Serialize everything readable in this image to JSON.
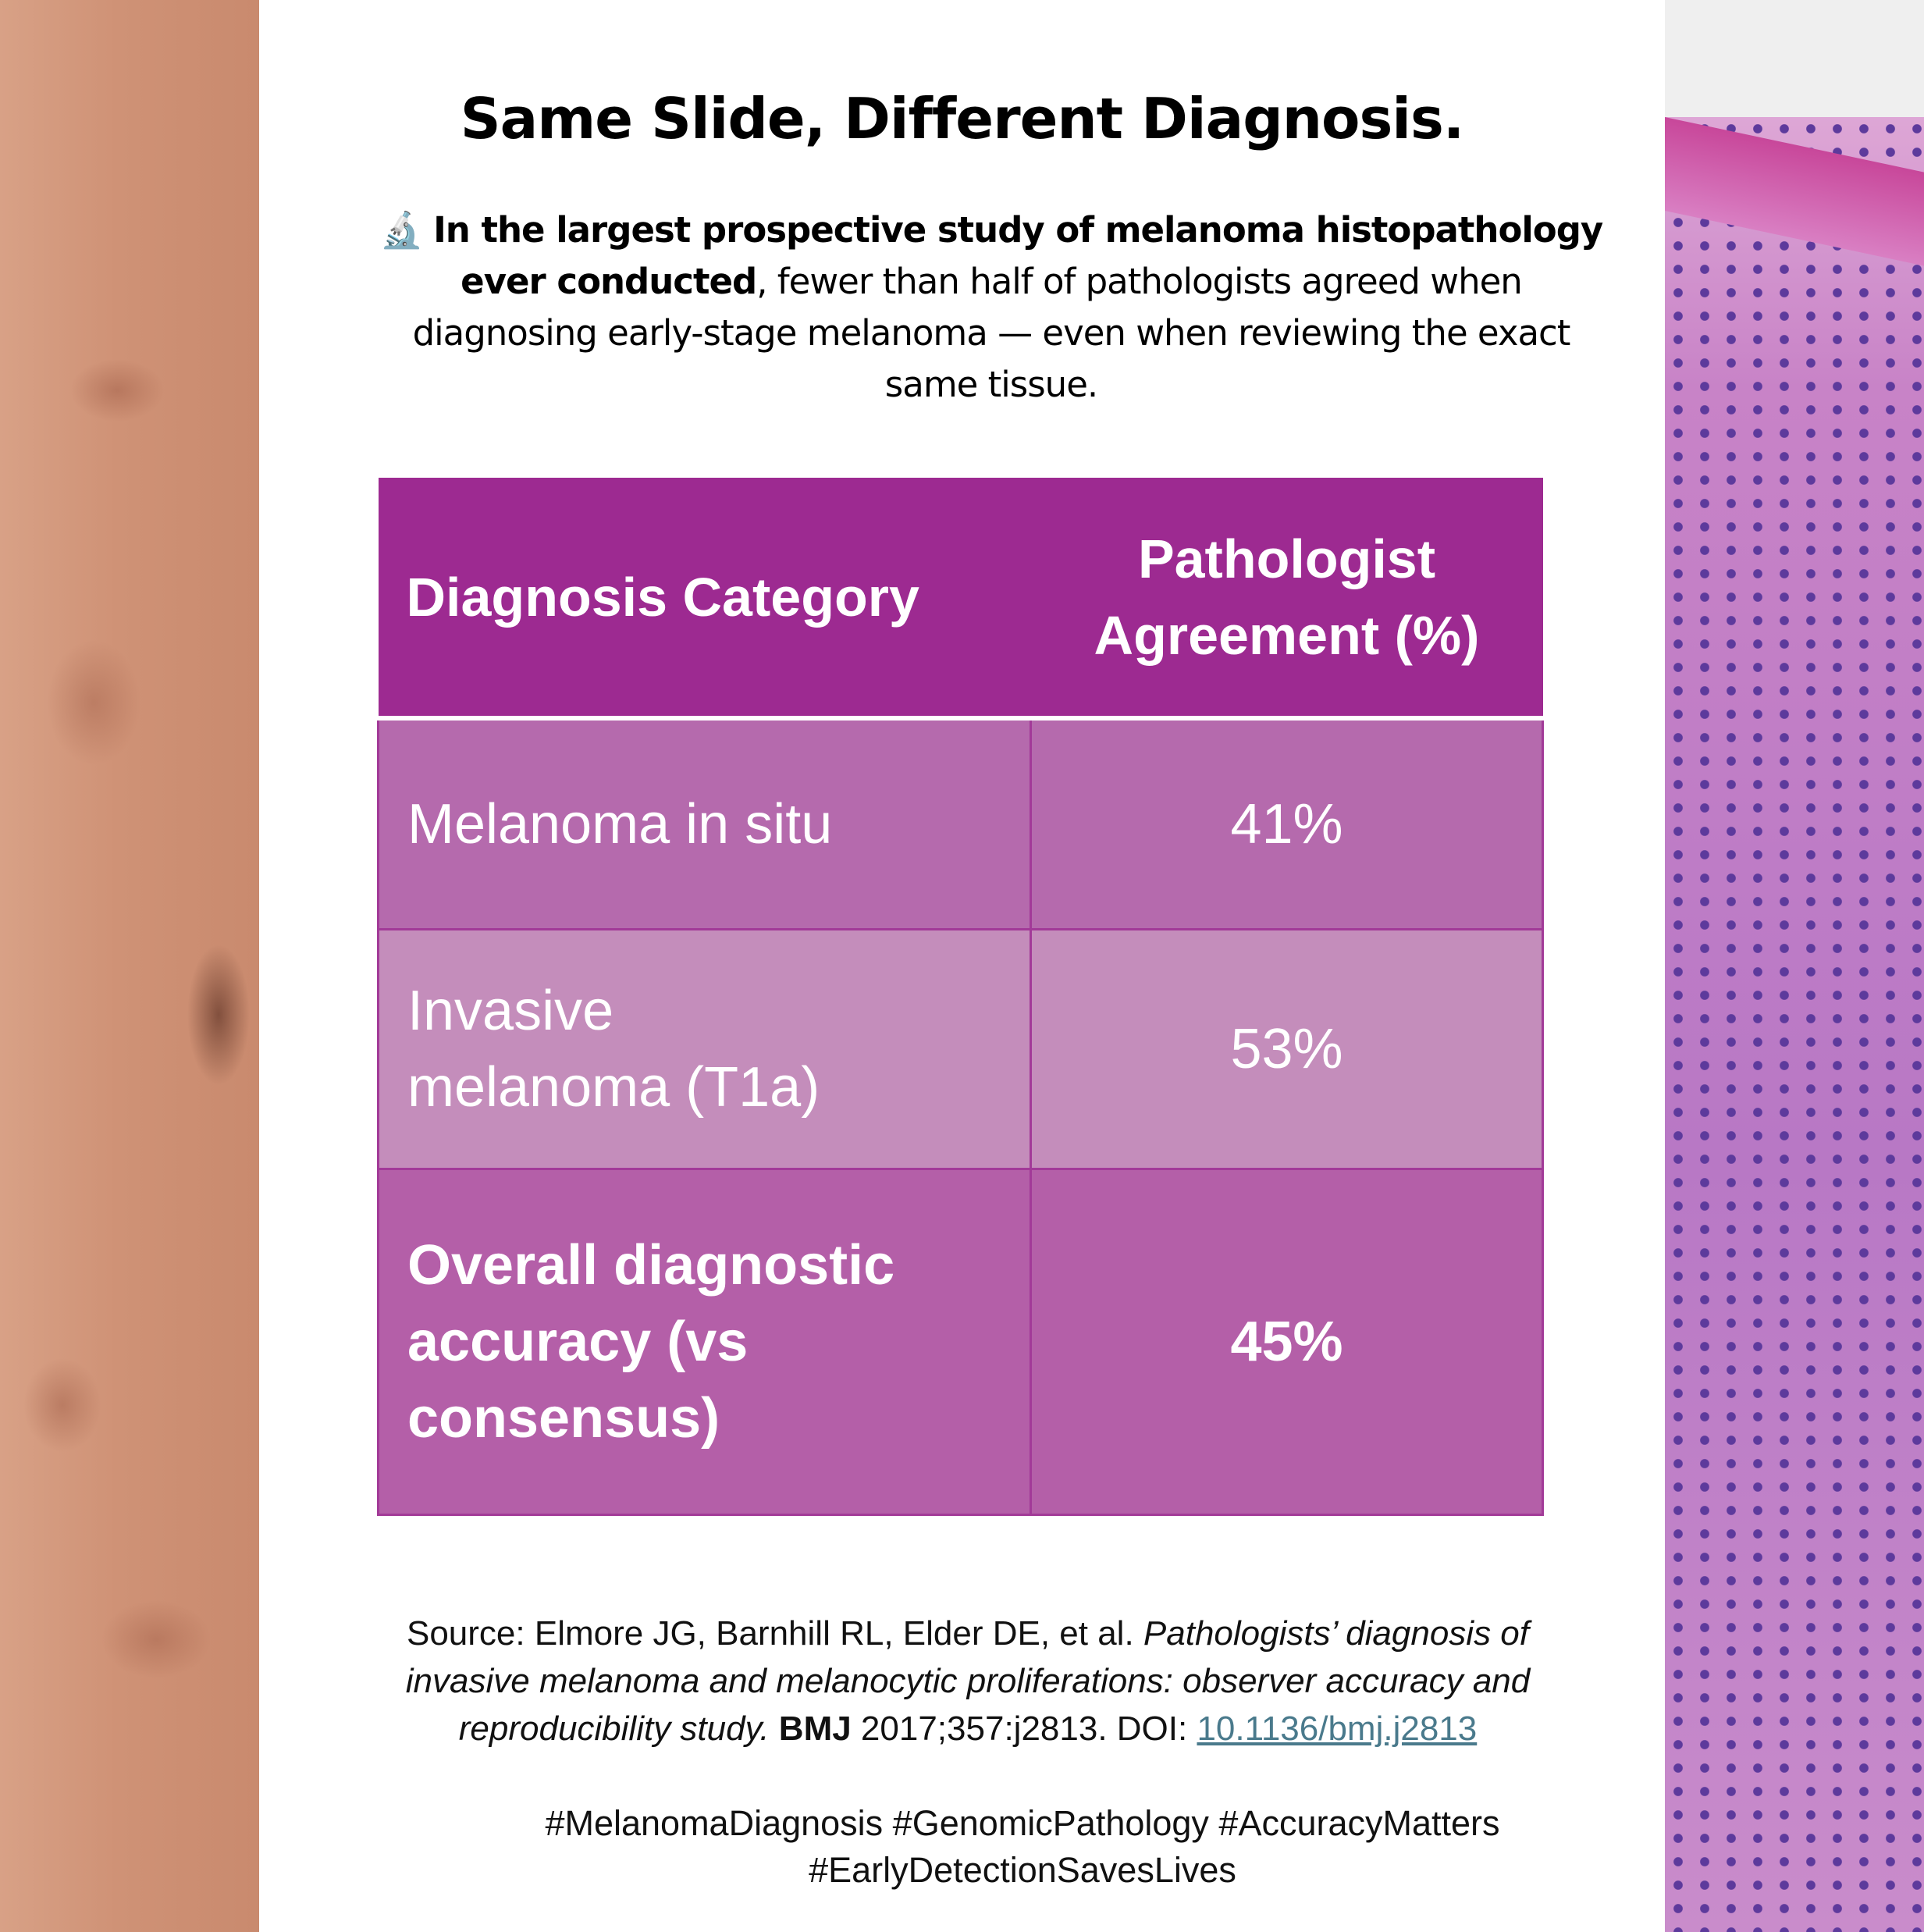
{
  "title": "Same Slide, Different Diagnosis.",
  "intro": {
    "icon": "microscope-icon",
    "bold": "In the largest prospective study of melanoma histopathology ever conducted",
    "rest": ", fewer than half of pathologists agreed when diagnosing early-stage melanoma — even when reviewing the exact same tissue."
  },
  "table": {
    "headers": [
      "Diagnosis Category",
      "Pathologist Agreement (%)"
    ],
    "rows": [
      {
        "category": "Melanoma in situ",
        "agreement": "41%"
      },
      {
        "category": "Invasive melanoma (T1a)",
        "agreement": "53%"
      },
      {
        "category": "Overall diagnostic accuracy (vs consensus)",
        "agreement": "45%"
      }
    ],
    "colors": {
      "header": "#9d2a91",
      "row1": "#b56aad",
      "row2": "#c48dbb",
      "row3": "#b45fa8"
    }
  },
  "source": {
    "prefix": "Source: Elmore JG, Barnhill RL, Elder DE, et al. ",
    "title_italic": "Pathologists’ diagnosis of invasive melanoma and melanocytic proliferations: observer accuracy and reproducibility study.",
    "journal": "BMJ",
    "citation": " 2017;357:j2813. DOI: ",
    "doi": "10.1136/bmj.j2813"
  },
  "hashtags": "#MelanomaDiagnosis #GenomicPathology #AccuracyMatters #EarlyDetectionSavesLives"
}
